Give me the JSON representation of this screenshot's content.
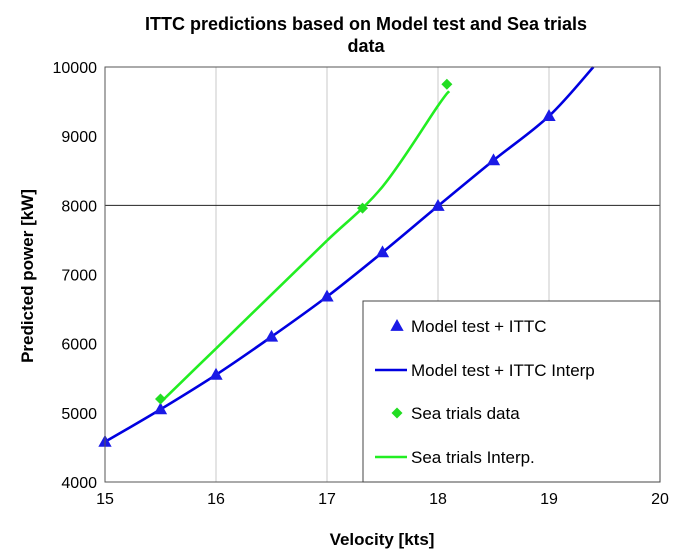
{
  "chart_data": {
    "type": "line",
    "title": "ITTC predictions based on Model test and Sea trials data",
    "title_lines": [
      "ITTC predictions based on Model test and Sea trials",
      "data"
    ],
    "xlabel": "Velocity [kts]",
    "ylabel": "Predicted power [kW]",
    "xlim": [
      15,
      20
    ],
    "ylim": [
      4000,
      10000
    ],
    "x_ticks": [
      15,
      16,
      17,
      18,
      19,
      20
    ],
    "y_ticks": [
      4000,
      5000,
      6000,
      7000,
      8000,
      9000,
      10000
    ],
    "grid": "vertical gridlines, horizontal line at 8000",
    "legend_position": "bottom-right",
    "series": [
      {
        "name": "Model test + ITTC",
        "kind": "markers",
        "marker": "triangle",
        "color": "#1a1ae6",
        "x": [
          15,
          15.5,
          16,
          16.5,
          17,
          17.5,
          18,
          18.5,
          19
        ],
        "y": [
          4580,
          5050,
          5550,
          6100,
          6680,
          7320,
          7990,
          8650,
          9290
        ]
      },
      {
        "name": "Model test + ITTC Interp",
        "kind": "line",
        "color": "#0000e0",
        "x": [
          15,
          15.5,
          16,
          16.5,
          17,
          17.5,
          18,
          18.5,
          19,
          19.4
        ],
        "y": [
          4580,
          5050,
          5550,
          6100,
          6680,
          7320,
          7990,
          8650,
          9290,
          10000
        ]
      },
      {
        "name": "Sea trials data",
        "kind": "markers",
        "marker": "diamond",
        "color": "#22dd22",
        "x": [
          15.5,
          17.32,
          18.08
        ],
        "y": [
          5200,
          7960,
          9750
        ]
      },
      {
        "name": "Sea trials Interp.",
        "kind": "line",
        "color": "#22ee22",
        "x": [
          15.5,
          16,
          16.5,
          17,
          17.5,
          18,
          18.1
        ],
        "y": [
          5150,
          5930,
          6710,
          7490,
          8270,
          9440,
          9650
        ]
      }
    ]
  }
}
